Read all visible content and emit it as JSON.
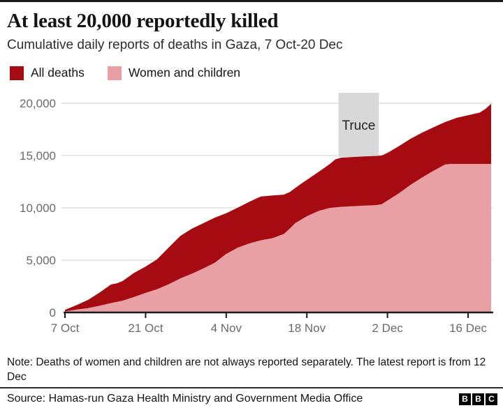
{
  "page": {
    "note": "Note: Deaths of women and children are not always reported separately. The latest report is from 12 Dec",
    "source": "Source: Hamas-run Gaza Health Ministry and Government Media Office",
    "logo_letters": [
      "B",
      "B",
      "C"
    ]
  },
  "chart_data": {
    "type": "area",
    "title": "At least 20,000 reportedly killed",
    "subtitle": "Cumulative daily reports of deaths in Gaza, 7 Oct-20 Dec",
    "grid": true,
    "legend_position": "top",
    "x_axis": {
      "start_date": "7 Oct",
      "end_date": "20 Dec",
      "total_days": 74,
      "ticks": [
        {
          "label": "7 Oct",
          "day": 0
        },
        {
          "label": "21 Oct",
          "day": 14
        },
        {
          "label": "4 Nov",
          "day": 28
        },
        {
          "label": "18 Nov",
          "day": 42
        },
        {
          "label": "2 Dec",
          "day": 56
        },
        {
          "label": "16 Dec",
          "day": 70
        }
      ]
    },
    "y_axis": {
      "max": 20000,
      "ticks": [
        {
          "label": "0",
          "value": 0
        },
        {
          "label": "5,000",
          "value": 5000
        },
        {
          "label": "10,000",
          "value": 10000
        },
        {
          "label": "15,000",
          "value": 15000
        },
        {
          "label": "20,000",
          "value": 20000
        }
      ]
    },
    "annotation": {
      "label": "Truce",
      "start_day": 47.5,
      "end_day": 54.5,
      "band_color": "#d8d8d8",
      "text_color": "#222222"
    },
    "colors": {
      "grid": "#e0e0e0",
      "axis": "#1a1a1a",
      "tick_text": "#6a6a6a"
    },
    "series": [
      {
        "name": "All deaths",
        "color": "#a50b10",
        "points": [
          [
            0,
            250
          ],
          [
            2,
            700
          ],
          [
            4,
            1200
          ],
          [
            6,
            1900
          ],
          [
            8,
            2670
          ],
          [
            9,
            2780
          ],
          [
            10,
            3000
          ],
          [
            12,
            3785
          ],
          [
            14,
            4385
          ],
          [
            16,
            5090
          ],
          [
            18,
            6200
          ],
          [
            20,
            7300
          ],
          [
            22,
            8000
          ],
          [
            24,
            8525
          ],
          [
            26,
            9060
          ],
          [
            28,
            9490
          ],
          [
            30,
            10020
          ],
          [
            32,
            10570
          ],
          [
            34,
            11080
          ],
          [
            36,
            11180
          ],
          [
            38,
            11260
          ],
          [
            39,
            11500
          ],
          [
            41,
            12300
          ],
          [
            43,
            13050
          ],
          [
            45,
            13800
          ],
          [
            46,
            14200
          ],
          [
            47,
            14650
          ],
          [
            48,
            14800
          ],
          [
            50,
            14860
          ],
          [
            52,
            14910
          ],
          [
            54,
            14960
          ],
          [
            55,
            15000
          ],
          [
            56,
            15250
          ],
          [
            58,
            15900
          ],
          [
            60,
            16600
          ],
          [
            62,
            17180
          ],
          [
            64,
            17700
          ],
          [
            66,
            18200
          ],
          [
            68,
            18600
          ],
          [
            70,
            18850
          ],
          [
            72,
            19100
          ],
          [
            73,
            19450
          ],
          [
            74,
            19950
          ]
        ]
      },
      {
        "name": "Women and children",
        "color": "#e8a0a5",
        "points": [
          [
            0,
            100
          ],
          [
            2,
            270
          ],
          [
            4,
            420
          ],
          [
            6,
            640
          ],
          [
            8,
            900
          ],
          [
            10,
            1130
          ],
          [
            12,
            1480
          ],
          [
            14,
            1870
          ],
          [
            16,
            2230
          ],
          [
            18,
            2700
          ],
          [
            20,
            3250
          ],
          [
            22,
            3700
          ],
          [
            24,
            4200
          ],
          [
            26,
            4750
          ],
          [
            28,
            5600
          ],
          [
            30,
            6200
          ],
          [
            32,
            6600
          ],
          [
            34,
            6900
          ],
          [
            36,
            7100
          ],
          [
            38,
            7500
          ],
          [
            39,
            8000
          ],
          [
            40,
            8550
          ],
          [
            42,
            9200
          ],
          [
            44,
            9700
          ],
          [
            46,
            10000
          ],
          [
            48,
            10100
          ],
          [
            50,
            10160
          ],
          [
            52,
            10210
          ],
          [
            54,
            10260
          ],
          [
            55,
            10350
          ],
          [
            56,
            10700
          ],
          [
            58,
            11400
          ],
          [
            60,
            12200
          ],
          [
            62,
            12900
          ],
          [
            64,
            13550
          ],
          [
            66,
            14150
          ],
          [
            67,
            14200
          ],
          [
            74,
            14200
          ]
        ]
      }
    ]
  }
}
